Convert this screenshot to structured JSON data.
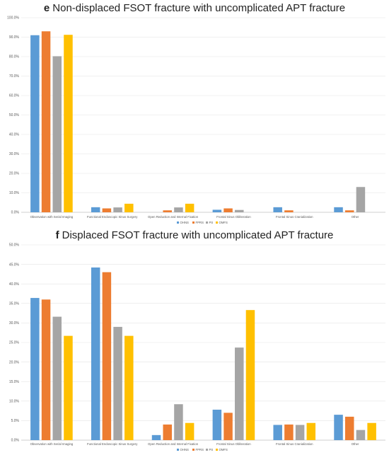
{
  "chart_data": [
    {
      "type": "bar",
      "panel_letter": "e",
      "title": "Non-displaced FSOT fracture with uncomplicated APT fracture",
      "categories": [
        "Observation with Serial Imaging",
        "Functional Endoscopic Sinus Surgery",
        "Open Reduction and Internal Fixation",
        "Frontal Sinus Obliteration",
        "Frontal Sinus Cranialization",
        "Other"
      ],
      "series": [
        {
          "name": "OHNS",
          "color": "#5b9bd5",
          "values": [
            91.0,
            2.6,
            0.0,
            1.3,
            2.6,
            2.6
          ]
        },
        {
          "name": "FPRS",
          "color": "#ed7d31",
          "values": [
            93.0,
            2.0,
            1.0,
            2.0,
            1.0,
            1.0
          ]
        },
        {
          "name": "PS",
          "color": "#a5a5a5",
          "values": [
            80.2,
            2.5,
            2.5,
            1.2,
            0.0,
            13.0
          ]
        },
        {
          "name": "OMFS",
          "color": "#ffc000",
          "values": [
            91.2,
            4.4,
            4.4,
            0.0,
            0.0,
            0.0
          ]
        }
      ],
      "y_ticks": [
        "0.0%",
        "10.0%",
        "20.0%",
        "30.0%",
        "40.0%",
        "50.0%",
        "60.0%",
        "70.0%",
        "80.0%",
        "90.0%",
        "100.0%"
      ],
      "ylim": [
        0,
        100
      ],
      "grid": true,
      "legend_position": "bottom"
    },
    {
      "type": "bar",
      "panel_letter": "f",
      "title": "Displaced FSOT fracture with uncomplicated APT fracture",
      "categories": [
        "Observation with Serial Imaging",
        "Functional Endoscopic Sinus Surgery",
        "Open Reduction and Internal Fixation",
        "Frontal Sinus Obliteration",
        "Frontal Sinus Cranialization",
        "Other"
      ],
      "series": [
        {
          "name": "OHNS",
          "color": "#5b9bd5",
          "values": [
            36.4,
            44.2,
            1.3,
            7.8,
            3.9,
            6.5
          ]
        },
        {
          "name": "FPRS",
          "color": "#ed7d31",
          "values": [
            36.0,
            43.0,
            4.0,
            7.0,
            4.0,
            6.0
          ]
        },
        {
          "name": "PS",
          "color": "#a5a5a5",
          "values": [
            31.6,
            29.0,
            9.2,
            23.7,
            3.9,
            2.6
          ]
        },
        {
          "name": "OMFS",
          "color": "#ffc000",
          "values": [
            26.7,
            26.7,
            4.4,
            33.3,
            4.4,
            4.4
          ]
        }
      ],
      "y_ticks": [
        "0.0%",
        "5.0%",
        "10.0%",
        "15.0%",
        "20.0%",
        "25.0%",
        "30.0%",
        "35.0%",
        "40.0%",
        "45.0%",
        "50.0%"
      ],
      "ylim": [
        0,
        50
      ],
      "grid": true,
      "legend_position": "bottom"
    }
  ]
}
